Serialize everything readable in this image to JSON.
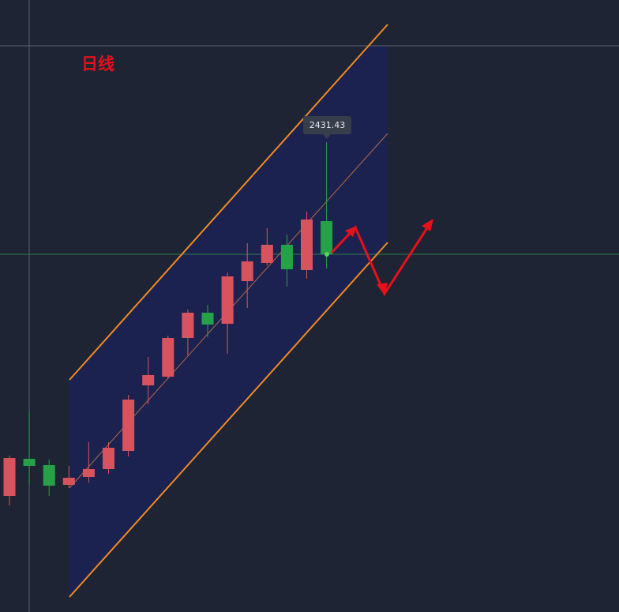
{
  "chart_data": {
    "type": "candlestick",
    "title": "日线",
    "open": [
      2028.23,
      2070.53,
      2063.33,
      2040.83,
      2049.83,
      2058.83,
      2079.53,
      2154.23,
      2164.13,
      2208.23,
      2237.03,
      2224.43,
      2273.03,
      2293.73,
      2314.43,
      2285.63,
      2341.43
    ],
    "high": [
      2074.13,
      2124.53,
      2069.63,
      2062.43,
      2089.43,
      2089.43,
      2143.43,
      2186.63,
      2210.93,
      2240.63,
      2246.03,
      2282.93,
      2316.23,
      2333.33,
      2326.13,
      2352.23,
      2431.43
    ],
    "low": [
      2017.43,
      2041.73,
      2028.23,
      2037.23,
      2043.53,
      2053.43,
      2073.23,
      2132.63,
      2161.43,
      2188.43,
      2209.13,
      2190.23,
      2242.43,
      2291.03,
      2266.73,
      2275.73,
      2287.43
    ],
    "close": [
      2071.43,
      2062.43,
      2039.93,
      2048.93,
      2058.83,
      2083.13,
      2138.03,
      2165.93,
      2208.23,
      2237.03,
      2223.53,
      2278.43,
      2295.53,
      2314.43,
      2286.53,
      2343.23,
      2303.63
    ],
    "up_color": "#d9535f",
    "down_color": "#26a148",
    "ylim": [
      1895.93,
      2593.43
    ]
  }
}
